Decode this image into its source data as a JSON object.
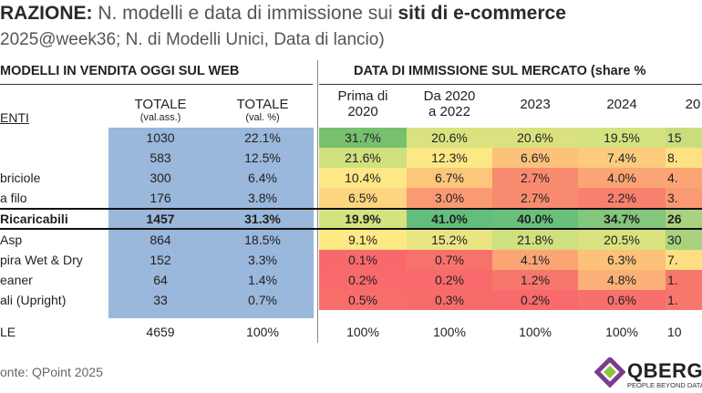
{
  "header": {
    "title_a": "RAZIONE:",
    "title_b": " N. modelli e data di immissione sui ",
    "title_c": "siti di e-commerce",
    "subtitle": "2025@week36; N. di Modelli Unici, Data di lancio)"
  },
  "table": {
    "left_header": "MODELLI IN VENDITA OGGI SUL WEB",
    "right_header": "DATA DI IMMISSIONE SUL MERCATO (share %",
    "segment_label": "ENTI",
    "col_totale_ass": {
      "big": "TOTALE",
      "small": "(val.ass.)"
    },
    "col_totale_pct": {
      "big": "TOTALE",
      "small": "(val. %)"
    },
    "date_columns": [
      {
        "l1": "Prima di",
        "l2": "2020"
      },
      {
        "l1": "Da 2020",
        "l2": "a 2022"
      },
      {
        "l1": "2023",
        "l2": ""
      },
      {
        "l1": "2024",
        "l2": ""
      },
      {
        "l1": "20",
        "l2": ""
      }
    ],
    "rows": [
      {
        "label": "",
        "abs": "1030",
        "pct": "22.1%",
        "shares": [
          "31.7%",
          "20.6%",
          "20.6%",
          "19.5%",
          "15"
        ],
        "colors": [
          "#77c16e",
          "#d9e27e",
          "#d9e27e",
          "#d4e37f",
          "#c8de7e"
        ],
        "bold": false
      },
      {
        "label": "",
        "abs": "583",
        "pct": "12.5%",
        "shares": [
          "21.6%",
          "12.3%",
          "6.6%",
          "7.4%",
          "8."
        ],
        "colors": [
          "#cfe07e",
          "#fde886",
          "#fcc27a",
          "#fccb7d",
          "#fde283"
        ],
        "bold": false
      },
      {
        "label": "briciole",
        "abs": "300",
        "pct": "6.4%",
        "shares": [
          "10.4%",
          "6.7%",
          "2.7%",
          "4.0%",
          "4."
        ],
        "colors": [
          "#fee785",
          "#fcc67b",
          "#f88b6f",
          "#fba575",
          "#fba575"
        ],
        "bold": false
      },
      {
        "label": "a filo",
        "abs": "176",
        "pct": "3.8%",
        "shares": [
          "6.5%",
          "3.0%",
          "2.7%",
          "2.2%",
          "3."
        ],
        "colors": [
          "#fdd580",
          "#fa9a72",
          "#f88b6f",
          "#f8806d",
          "#fa9a72"
        ],
        "bold": false
      },
      {
        "label": "Ricaricabili",
        "abs": "1457",
        "pct": "31.3%",
        "shares": [
          "19.9%",
          "41.0%",
          "40.0%",
          "34.7%",
          "26"
        ],
        "colors": [
          "#d4e37f",
          "#63be7b",
          "#68c07b",
          "#83c77c",
          "#a8d27d"
        ],
        "bold": true
      },
      {
        "label": "Asp",
        "abs": "864",
        "pct": "18.5%",
        "shares": [
          "9.1%",
          "15.2%",
          "21.8%",
          "20.5%",
          "30"
        ],
        "colors": [
          "#fee985",
          "#e9e583",
          "#cfe07e",
          "#d9e27e",
          "#a8d27d"
        ],
        "bold": false
      },
      {
        "label": "pira Wet & Dry",
        "abs": "152",
        "pct": "3.3%",
        "shares": [
          "0.1%",
          "0.7%",
          "4.1%",
          "6.3%",
          "7."
        ],
        "colors": [
          "#f8696b",
          "#f8726c",
          "#fba575",
          "#fcc27a",
          "#fde082"
        ],
        "bold": false
      },
      {
        "label": "eaner",
        "abs": "64",
        "pct": "1.4%",
        "shares": [
          "0.2%",
          "0.2%",
          "1.2%",
          "4.8%",
          "1."
        ],
        "colors": [
          "#f86a6b",
          "#f86a6b",
          "#f8776c",
          "#fbb078",
          "#f8776c"
        ],
        "bold": false
      },
      {
        "label": "ali (Upright)",
        "abs": "33",
        "pct": "0.7%",
        "shares": [
          "0.5%",
          "0.3%",
          "0.2%",
          "0.6%",
          "1."
        ],
        "colors": [
          "#f86e6b",
          "#f86b6b",
          "#f86a6b",
          "#f8706c",
          "#f8776c"
        ],
        "bold": false
      },
      {
        "label": "LE",
        "abs": "4659",
        "pct": "100%",
        "shares": [
          "100%",
          "100%",
          "100%",
          "100%",
          "10"
        ],
        "colors": [
          "#ffffff",
          "#ffffff",
          "#ffffff",
          "#ffffff",
          "#ffffff"
        ],
        "bold": false
      }
    ]
  },
  "footer": {
    "source": "onte: QPoint 2025",
    "logo_word": "QBERG",
    "logo_tag": "PEOPLE BEYOND DATA"
  }
}
